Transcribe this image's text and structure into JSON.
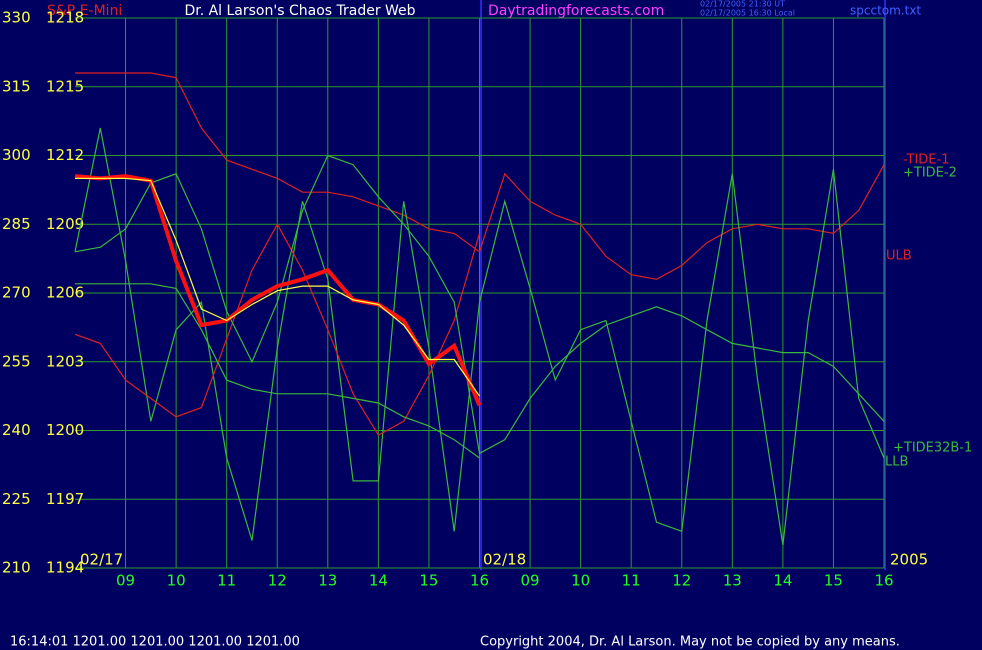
{
  "chart_data": {
    "type": "line",
    "title": "Dr. Al Larson's Chaos Trader Web",
    "subtitle": "S&P E-Mini",
    "site": "Daytradingforecasts.com",
    "annotations": [
      "02/17/2005 21:30 UT",
      "02/17/2005 16:30 Local",
      "spcctom.txt",
      "02/17",
      "02/18",
      "2005"
    ],
    "status": "16:14:01  1201.00 1201.00 1201.00 1201.00",
    "copyright": "Copyright 2004, Dr. Al Larson. May not be copied by any means.",
    "grid": true,
    "xlim": [
      0,
      16
    ],
    "xticks": [
      {
        "value": 1,
        "label": "09"
      },
      {
        "value": 2,
        "label": "10"
      },
      {
        "value": 3,
        "label": "11"
      },
      {
        "value": 4,
        "label": "12"
      },
      {
        "value": 5,
        "label": "13"
      },
      {
        "value": 6,
        "label": "14"
      },
      {
        "value": 7,
        "label": "15"
      },
      {
        "value": 8,
        "label": "16"
      },
      {
        "value": 9,
        "label": "09"
      },
      {
        "value": 10,
        "label": "10"
      },
      {
        "value": 11,
        "label": "11"
      },
      {
        "value": 12,
        "label": "12"
      },
      {
        "value": 13,
        "label": "13"
      },
      {
        "value": 14,
        "label": "14"
      },
      {
        "value": 15,
        "label": "15"
      },
      {
        "value": 16,
        "label": "16"
      }
    ],
    "ylim": [
      210,
      330
    ],
    "yticks": [
      210,
      225,
      240,
      255,
      270,
      285,
      300,
      315,
      330
    ],
    "y2lim": [
      1194,
      1218
    ],
    "y2ticks": [
      1194,
      1197,
      1200,
      1203,
      1206,
      1209,
      1212,
      1215,
      1218
    ],
    "x": [
      0,
      0.5,
      1,
      1.5,
      2,
      2.5,
      3,
      3.5,
      4,
      4.5,
      5,
      5.5,
      6,
      6.5,
      7,
      7.5,
      8,
      8.5,
      9,
      9.5,
      10,
      10.5,
      11,
      11.5,
      12,
      12.5,
      13,
      13.5,
      14,
      14.5,
      15,
      15.5,
      16
    ],
    "series": [
      {
        "name": "-TIDE-1",
        "color": "#e02020",
        "values": [
          318,
          318,
          318,
          318,
          317,
          306,
          299,
          297,
          295,
          292,
          292,
          291,
          289,
          287,
          284,
          283,
          279,
          296,
          290,
          287,
          285,
          278,
          274,
          273,
          276,
          281,
          284,
          285,
          284,
          284,
          283,
          288,
          298
        ]
      },
      {
        "name": "+TIDE-2",
        "color": "#3cb83c",
        "values": [
          279,
          306,
          277,
          242,
          262,
          268,
          234,
          216,
          258,
          290,
          273,
          229,
          229,
          290,
          258,
          218,
          268,
          290,
          271,
          251,
          262,
          264,
          242,
          220,
          218,
          264,
          296,
          251,
          215,
          264,
          297,
          247,
          234
        ]
      },
      {
        "name": "ULB",
        "color": "#e02020",
        "values": [
          261,
          259,
          251,
          247,
          243,
          245,
          260,
          275,
          285,
          275,
          262,
          248,
          239,
          242,
          252,
          264,
          283,
          null,
          null,
          null,
          null,
          null,
          null,
          null,
          null,
          null,
          null,
          null,
          null,
          null,
          null,
          null,
          null
        ]
      },
      {
        "name": "+TIDE32B-1",
        "color": "#3cb83c",
        "values": [
          279,
          280,
          284,
          294,
          296,
          284,
          266,
          255,
          268,
          288,
          300,
          298,
          291,
          285,
          278,
          268,
          235,
          238,
          247,
          254,
          259,
          263,
          265,
          267,
          265,
          262,
          259,
          258,
          257,
          257,
          254,
          248,
          242
        ]
      },
      {
        "name": "LLB",
        "color": "#3cb83c",
        "values": [
          272,
          272,
          272,
          272,
          271,
          262,
          251,
          249,
          248,
          248,
          248,
          247,
          246,
          243,
          241,
          238,
          234,
          null,
          null,
          null,
          null,
          null,
          null,
          null,
          null,
          null,
          null,
          null,
          null,
          null,
          null,
          null,
          null
        ]
      },
      {
        "color": "#ff1010",
        "axis": "y2",
        "values": [
          1211.1,
          1211.0,
          1211.1,
          1210.9,
          1207.4,
          1204.6,
          1204.8,
          1205.7,
          1206.3,
          1206.6,
          1207.0,
          1205.7,
          1205.5,
          1204.8,
          1202.9,
          1203.7,
          1201.1,
          null,
          null,
          null,
          null,
          null,
          null,
          null,
          null,
          null,
          null,
          null,
          null,
          null,
          null,
          null,
          null
        ]
      },
      {
        "color": "#ffff40",
        "axis": "y2",
        "values": [
          1211.0,
          1211.0,
          1211.0,
          1210.9,
          1208.3,
          1205.3,
          1204.8,
          1205.5,
          1206.1,
          1206.3,
          1206.3,
          1205.7,
          1205.5,
          1204.6,
          1203.1,
          1203.1,
          1201.5,
          null,
          null,
          null,
          null,
          null,
          null,
          null,
          null,
          null,
          null,
          null,
          null,
          null,
          null,
          null,
          null
        ]
      }
    ]
  }
}
